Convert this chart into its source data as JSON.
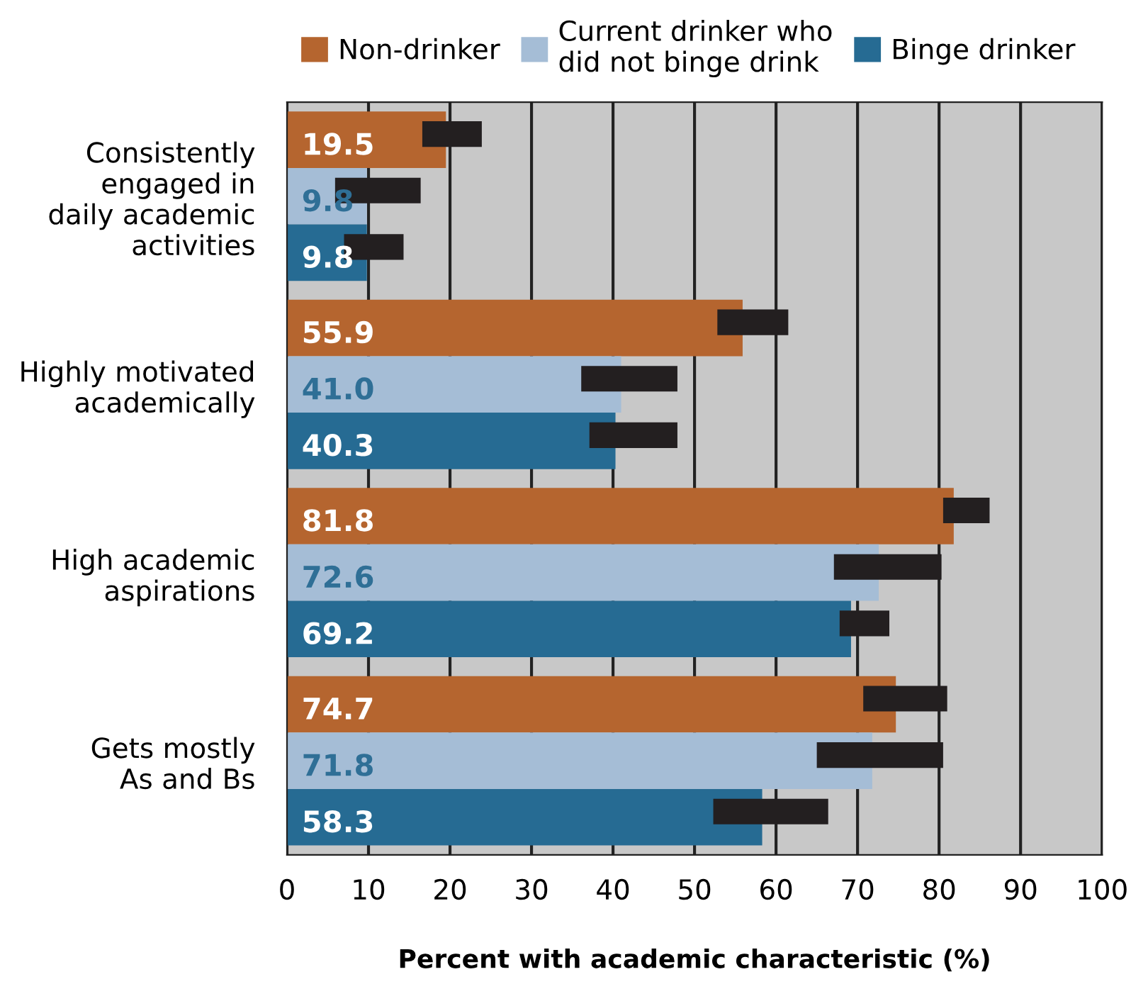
{
  "chart_data": {
    "type": "bar",
    "orientation": "horizontal",
    "xlabel": "Percent with academic characteristic (%)",
    "categories": [
      "Consistently\nengaged in\ndaily academic\nactivities",
      "Highly motivated\nacademically",
      "High academic\naspirations",
      "Gets mostly\nAs and Bs"
    ],
    "series": [
      {
        "name": "Non-drinker",
        "color": "#b5652f",
        "values": [
          19.5,
          55.9,
          81.8,
          74.7
        ],
        "value_labels": [
          "19.5",
          "55.9",
          "81.8",
          "74.7"
        ],
        "errors": [
          [
            16.6,
            23.9
          ],
          [
            52.8,
            61.5
          ],
          [
            80.5,
            86.2
          ],
          [
            70.7,
            81.0
          ]
        ]
      },
      {
        "name": "Current drinker who\ndid not binge drink",
        "color": "#a5bdd6",
        "values": [
          9.8,
          41.0,
          72.6,
          71.8
        ],
        "value_labels": [
          "9.8",
          "41.0",
          "72.6",
          "71.8"
        ],
        "errors": [
          [
            5.9,
            16.4
          ],
          [
            36.1,
            47.9
          ],
          [
            67.1,
            80.3
          ],
          [
            65.0,
            80.5
          ]
        ]
      },
      {
        "name": "Binge drinker",
        "color": "#266b93",
        "values": [
          9.8,
          40.3,
          69.2,
          58.3
        ],
        "value_labels": [
          "9.8",
          "40.3",
          "69.2",
          "58.3"
        ],
        "errors": [
          [
            7.0,
            14.3
          ],
          [
            37.1,
            47.9
          ],
          [
            67.8,
            73.9
          ],
          [
            52.3,
            66.4
          ]
        ]
      }
    ],
    "xlim": [
      0,
      100
    ],
    "xticks": [
      0,
      10,
      20,
      30,
      40,
      50,
      60,
      70,
      80,
      90,
      100
    ],
    "grid": "x",
    "legend": "top"
  }
}
